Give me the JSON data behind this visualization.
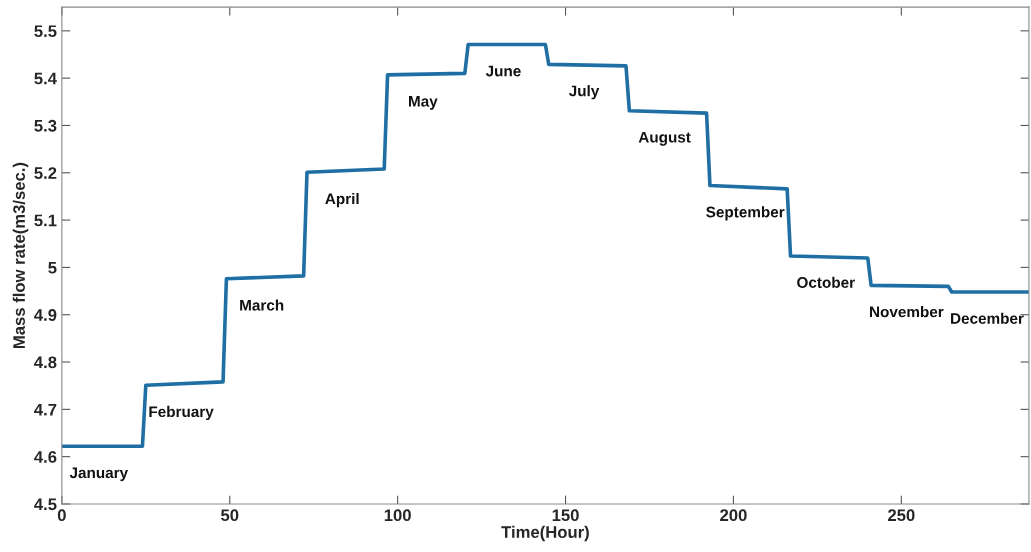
{
  "chart_data": {
    "type": "line",
    "xlabel": "Time(Hour)",
    "ylabel": "Mass flow rate(m3/sec.)",
    "xlim": [
      0,
      288
    ],
    "xticks": [
      0,
      50,
      100,
      150,
      200,
      250
    ],
    "ylim": [
      4.5,
      5.55
    ],
    "yticks": [
      4.5,
      4.6,
      4.7,
      4.8,
      4.9,
      5,
      5.1,
      5.2,
      5.3,
      5.4,
      5.5
    ],
    "grid": false,
    "marker": "none",
    "line_style": "solid",
    "series": [
      {
        "color": "#1f6fa5",
        "x": [
          0,
          24,
          25,
          48,
          49,
          72,
          73,
          96,
          97,
          120,
          121,
          144,
          145,
          168,
          169,
          192,
          193,
          216,
          217,
          240,
          241,
          264,
          265,
          288
        ],
        "values": [
          4.622,
          4.622,
          4.751,
          4.758,
          4.976,
          4.982,
          5.201,
          5.208,
          5.407,
          5.41,
          5.471,
          5.471,
          5.429,
          5.426,
          5.331,
          5.326,
          5.173,
          5.166,
          5.024,
          5.02,
          4.962,
          4.96,
          4.948,
          4.948
        ]
      }
    ],
    "annotations": [
      "January",
      "February",
      "March",
      "April",
      "May",
      "June",
      "July",
      "August",
      "September",
      "October",
      "November",
      "December"
    ]
  }
}
